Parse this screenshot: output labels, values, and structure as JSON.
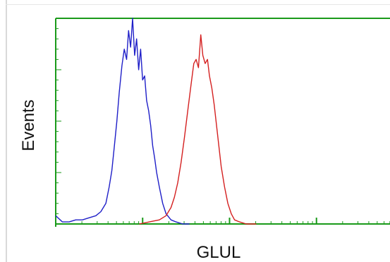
{
  "chart_data": {
    "type": "line",
    "title": "",
    "xlabel": "GLUL",
    "ylabel": "Events",
    "xlim": [
      0,
      1
    ],
    "ylim": [
      0,
      1
    ],
    "grid": false,
    "legend": "none",
    "frame_color": "#1a9a1a",
    "series": [
      {
        "color": "#1f1fc8",
        "x": [
          0.0,
          0.02,
          0.04,
          0.06,
          0.08,
          0.1,
          0.12,
          0.135,
          0.15,
          0.16,
          0.168,
          0.175,
          0.183,
          0.19,
          0.198,
          0.205,
          0.212,
          0.218,
          0.224,
          0.23,
          0.236,
          0.242,
          0.248,
          0.254,
          0.26,
          0.266,
          0.272,
          0.278,
          0.284,
          0.29,
          0.296,
          0.302,
          0.31,
          0.32,
          0.33,
          0.345,
          0.36,
          0.38,
          0.4
        ],
        "y": [
          0.04,
          0.01,
          0.01,
          0.02,
          0.02,
          0.03,
          0.04,
          0.06,
          0.1,
          0.18,
          0.26,
          0.37,
          0.5,
          0.64,
          0.77,
          0.85,
          0.8,
          0.94,
          0.86,
          1.0,
          0.82,
          0.9,
          0.75,
          0.85,
          0.7,
          0.72,
          0.6,
          0.55,
          0.48,
          0.38,
          0.32,
          0.25,
          0.18,
          0.1,
          0.05,
          0.02,
          0.01,
          0.0,
          0.0
        ]
      },
      {
        "color": "#d42020",
        "x": [
          0.25,
          0.28,
          0.31,
          0.33,
          0.345,
          0.355,
          0.365,
          0.375,
          0.385,
          0.395,
          0.405,
          0.413,
          0.42,
          0.427,
          0.434,
          0.44,
          0.447,
          0.454,
          0.46,
          0.467,
          0.474,
          0.481,
          0.488,
          0.495,
          0.505,
          0.515,
          0.525,
          0.535,
          0.55,
          0.57,
          0.6
        ],
        "y": [
          0.0,
          0.01,
          0.02,
          0.04,
          0.08,
          0.13,
          0.2,
          0.3,
          0.42,
          0.55,
          0.68,
          0.78,
          0.8,
          0.76,
          0.92,
          0.82,
          0.78,
          0.8,
          0.72,
          0.66,
          0.58,
          0.48,
          0.38,
          0.28,
          0.18,
          0.1,
          0.05,
          0.02,
          0.01,
          0.0,
          0.0
        ]
      }
    ]
  }
}
